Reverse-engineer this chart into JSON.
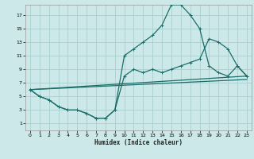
{
  "xlabel": "Humidex (Indice chaleur)",
  "bg_color": "#cce8e8",
  "grid_color": "#aacfcf",
  "line_color": "#1a6e6a",
  "xlim": [
    -0.5,
    23.5
  ],
  "ylim": [
    0,
    18.5
  ],
  "xticks": [
    0,
    1,
    2,
    3,
    4,
    5,
    6,
    7,
    8,
    9,
    10,
    11,
    12,
    13,
    14,
    15,
    16,
    17,
    18,
    19,
    20,
    21,
    22,
    23
  ],
  "yticks": [
    1,
    3,
    5,
    7,
    9,
    11,
    13,
    15,
    17
  ],
  "curve1_x": [
    0,
    1,
    2,
    3,
    4,
    5,
    6,
    7,
    8,
    9,
    10,
    11,
    12,
    13,
    14,
    15,
    16,
    17,
    18,
    19,
    20,
    21,
    22,
    23
  ],
  "curve1_y": [
    6,
    5,
    4.5,
    3.5,
    3.0,
    3.0,
    2.5,
    1.8,
    1.8,
    3.0,
    11,
    12,
    13,
    14,
    15.5,
    18.5,
    18.5,
    17,
    15,
    9.5,
    8.5,
    8,
    9.5,
    8
  ],
  "curve2_x": [
    0,
    1,
    2,
    3,
    4,
    5,
    6,
    7,
    8,
    9,
    10,
    11,
    12,
    13,
    14,
    15,
    16,
    17,
    18,
    19,
    20,
    21,
    22,
    23
  ],
  "curve2_y": [
    6,
    5,
    4.5,
    3.5,
    3.0,
    3.0,
    2.5,
    1.8,
    1.8,
    3.0,
    8,
    9,
    8.5,
    9,
    8.5,
    9,
    9.5,
    10,
    10.5,
    13.5,
    13,
    12,
    9.5,
    8
  ],
  "line1_x": [
    0,
    23
  ],
  "line1_y": [
    6,
    8
  ],
  "line2_x": [
    0,
    23
  ],
  "line2_y": [
    6,
    7.5
  ]
}
